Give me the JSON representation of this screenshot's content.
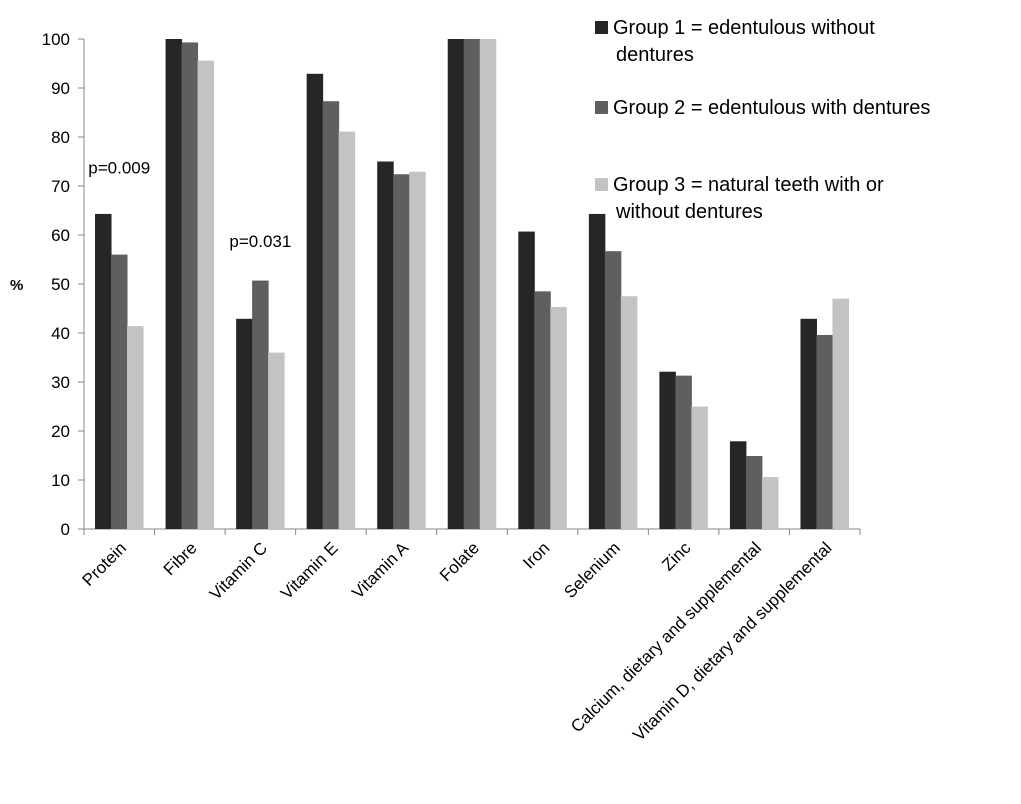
{
  "chart_data": {
    "type": "bar",
    "ylabel": "%",
    "ylim": [
      0,
      100
    ],
    "yticks": [
      0,
      10,
      20,
      30,
      40,
      50,
      60,
      70,
      80,
      90,
      100
    ],
    "grid": false,
    "legend_position": "top-right",
    "categories": [
      "Protein",
      "Fibre",
      "Vitamin C",
      "Vitamin E",
      "Vitamin A",
      "Folate",
      "Iron",
      "Selenium",
      "Zinc",
      "Calcium, dietary and supplemental",
      "Vitamin D, dietary and supplemental"
    ],
    "series": [
      {
        "name_lines": [
          "Group 1 = edentulous without",
          "dentures"
        ],
        "color": "#262626",
        "values": [
          64.3,
          100,
          42.9,
          92.9,
          75.0,
          100,
          60.7,
          64.3,
          32.1,
          17.9,
          42.9
        ]
      },
      {
        "name_lines": [
          "Group 2 = edentulous with dentures"
        ],
        "color": "#5f5f5f",
        "values": [
          56.0,
          99.3,
          50.7,
          87.3,
          72.4,
          100,
          48.5,
          56.7,
          31.3,
          14.9,
          39.6
        ]
      },
      {
        "name_lines": [
          "Group 3 = natural teeth with or",
          "without dentures"
        ],
        "color": "#c3c3c3",
        "values": [
          41.4,
          95.6,
          36.0,
          81.1,
          72.9,
          100,
          45.3,
          47.5,
          25.0,
          10.6,
          47.0
        ]
      }
    ],
    "annotations": [
      {
        "text": "p=0.009",
        "category": "Protein",
        "y": 72.6
      },
      {
        "text": "p=0.031",
        "category": "Vitamin C",
        "y": 57.6
      }
    ]
  }
}
